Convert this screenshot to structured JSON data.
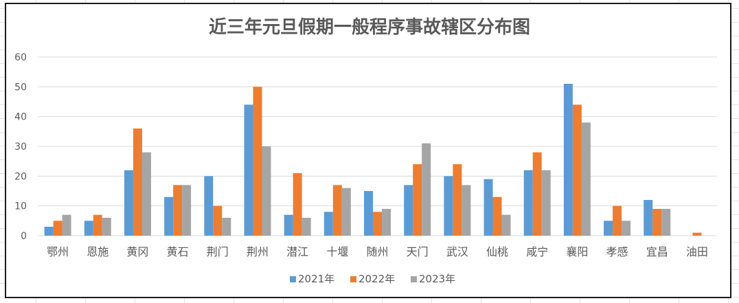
{
  "chart_data": {
    "type": "bar",
    "title": "近三年元旦假期一般程序事故辖区分布图",
    "xlabel": "",
    "ylabel": "",
    "ylim": [
      0,
      60
    ],
    "yticks": [
      0,
      10,
      20,
      30,
      40,
      50,
      60
    ],
    "grid": true,
    "legend_position": "bottom",
    "categories": [
      "鄂州",
      "恩施",
      "黄冈",
      "黄石",
      "荆门",
      "荆州",
      "潜江",
      "十堰",
      "随州",
      "天门",
      "武汉",
      "仙桃",
      "咸宁",
      "襄阳",
      "孝感",
      "宜昌",
      "油田"
    ],
    "series": [
      {
        "name": "2021年",
        "color": "#5b9bd5",
        "values": [
          3,
          5,
          22,
          13,
          20,
          44,
          7,
          8,
          15,
          17,
          20,
          19,
          22,
          51,
          5,
          12,
          0
        ]
      },
      {
        "name": "2022年",
        "color": "#ed7d31",
        "values": [
          5,
          7,
          36,
          17,
          10,
          50,
          21,
          17,
          8,
          24,
          24,
          13,
          28,
          44,
          10,
          9,
          1
        ]
      },
      {
        "name": "2023年",
        "color": "#a5a5a5",
        "values": [
          7,
          6,
          28,
          17,
          6,
          30,
          6,
          16,
          9,
          31,
          17,
          7,
          22,
          38,
          5,
          9,
          0
        ]
      }
    ]
  }
}
